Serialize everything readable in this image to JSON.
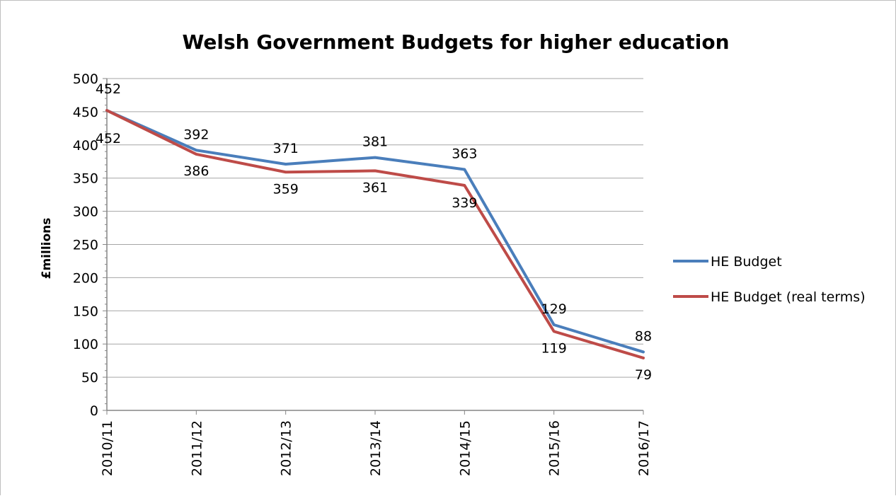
{
  "chart_data": {
    "type": "line",
    "title": "Welsh Government Budgets for higher education",
    "xlabel": "",
    "ylabel": "£millions",
    "ylim": [
      0,
      500
    ],
    "y_ticks": [
      0,
      50,
      100,
      150,
      200,
      250,
      300,
      350,
      400,
      450,
      500
    ],
    "categories": [
      "2010/11",
      "2011/12",
      "2012/13",
      "2013/14",
      "2014/15",
      "2015/16",
      "2016/17"
    ],
    "series": [
      {
        "name": "HE Budget",
        "color": "#4a7ebb",
        "values": [
          452,
          392,
          371,
          381,
          363,
          129,
          88
        ]
      },
      {
        "name": "HE Budget (real terms)",
        "color": "#be4b48",
        "values": [
          452,
          386,
          359,
          361,
          339,
          119,
          79
        ]
      }
    ],
    "grid": true,
    "legend": "right"
  }
}
